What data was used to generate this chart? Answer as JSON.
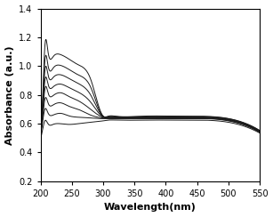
{
  "title": "",
  "xlabel": "Wavelength(nm)",
  "ylabel": "Absorbance (a.u.)",
  "xlim": [
    200,
    550
  ],
  "ylim": [
    0.2,
    1.4
  ],
  "xticks": [
    200,
    250,
    300,
    350,
    400,
    450,
    500,
    550
  ],
  "yticks": [
    0.2,
    0.4,
    0.6,
    0.8,
    1.0,
    1.2,
    1.4
  ],
  "background_color": "#ffffff",
  "line_color": "#1a1a1a",
  "curves": [
    {
      "key_points_x": [
        200,
        203,
        207,
        212,
        220,
        232,
        245,
        260,
        280,
        300,
        308,
        320,
        360,
        430,
        500,
        550
      ],
      "key_points_y": [
        0.5,
        0.55,
        0.62,
        0.6,
        0.595,
        0.6,
        0.595,
        0.6,
        0.61,
        0.62,
        0.625,
        0.625,
        0.625,
        0.625,
        0.61,
        0.535
      ]
    },
    {
      "key_points_x": [
        200,
        203,
        207,
        212,
        220,
        232,
        245,
        260,
        280,
        300,
        308,
        320,
        360,
        430,
        500,
        550
      ],
      "key_points_y": [
        0.52,
        0.6,
        0.7,
        0.675,
        0.66,
        0.672,
        0.655,
        0.645,
        0.64,
        0.635,
        0.635,
        0.635,
        0.635,
        0.635,
        0.62,
        0.54
      ]
    },
    {
      "key_points_x": [
        200,
        203,
        207,
        212,
        220,
        232,
        245,
        260,
        280,
        300,
        308,
        320,
        360,
        430,
        500,
        550
      ],
      "key_points_y": [
        0.54,
        0.62,
        0.77,
        0.745,
        0.73,
        0.745,
        0.722,
        0.7,
        0.66,
        0.64,
        0.638,
        0.638,
        0.638,
        0.638,
        0.622,
        0.542
      ]
    },
    {
      "key_points_x": [
        200,
        203,
        207,
        212,
        220,
        232,
        245,
        260,
        280,
        300,
        308,
        320,
        360,
        430,
        500,
        550
      ],
      "key_points_y": [
        0.56,
        0.64,
        0.84,
        0.815,
        0.795,
        0.815,
        0.79,
        0.76,
        0.7,
        0.645,
        0.641,
        0.641,
        0.641,
        0.641,
        0.625,
        0.545
      ]
    },
    {
      "key_points_x": [
        200,
        203,
        207,
        212,
        220,
        232,
        245,
        260,
        280,
        300,
        308,
        320,
        360,
        430,
        500,
        550
      ],
      "key_points_y": [
        0.57,
        0.66,
        0.9,
        0.875,
        0.855,
        0.875,
        0.852,
        0.82,
        0.75,
        0.648,
        0.644,
        0.644,
        0.644,
        0.644,
        0.628,
        0.547
      ]
    },
    {
      "key_points_x": [
        200,
        203,
        207,
        212,
        220,
        232,
        245,
        260,
        280,
        300,
        308,
        320,
        360,
        430,
        500,
        550
      ],
      "key_points_y": [
        0.58,
        0.68,
        0.97,
        0.94,
        0.92,
        0.94,
        0.915,
        0.88,
        0.8,
        0.65,
        0.647,
        0.647,
        0.647,
        0.647,
        0.631,
        0.549
      ]
    },
    {
      "key_points_x": [
        200,
        203,
        207,
        212,
        220,
        232,
        245,
        260,
        280,
        300,
        308,
        320,
        360,
        430,
        500,
        550
      ],
      "key_points_y": [
        0.59,
        0.7,
        1.04,
        1.005,
        0.985,
        1.005,
        0.978,
        0.94,
        0.855,
        0.651,
        0.649,
        0.649,
        0.649,
        0.649,
        0.634,
        0.551
      ]
    },
    {
      "key_points_x": [
        200,
        203,
        207,
        212,
        220,
        232,
        245,
        260,
        280,
        300,
        308,
        320,
        360,
        430,
        500,
        550
      ],
      "key_points_y": [
        0.6,
        0.72,
        1.14,
        1.1,
        1.065,
        1.08,
        1.05,
        1.01,
        0.91,
        0.653,
        0.652,
        0.652,
        0.652,
        0.652,
        0.636,
        0.553
      ]
    }
  ],
  "tick_fontsize": 7,
  "label_fontsize": 8
}
